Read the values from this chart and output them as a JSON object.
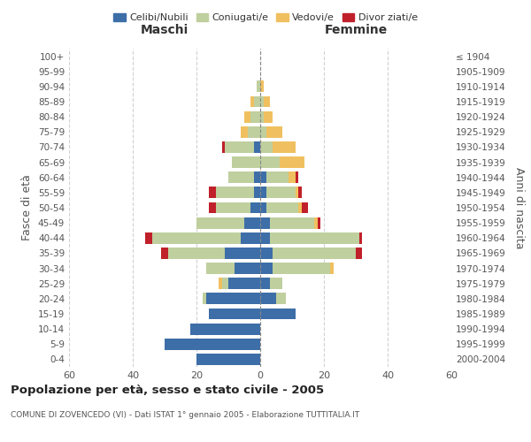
{
  "age_groups": [
    "0-4",
    "5-9",
    "10-14",
    "15-19",
    "20-24",
    "25-29",
    "30-34",
    "35-39",
    "40-44",
    "45-49",
    "50-54",
    "55-59",
    "60-64",
    "65-69",
    "70-74",
    "75-79",
    "80-84",
    "85-89",
    "90-94",
    "95-99",
    "100+"
  ],
  "birth_years": [
    "2000-2004",
    "1995-1999",
    "1990-1994",
    "1985-1989",
    "1980-1984",
    "1975-1979",
    "1970-1974",
    "1965-1969",
    "1960-1964",
    "1955-1959",
    "1950-1954",
    "1945-1949",
    "1940-1944",
    "1935-1939",
    "1930-1934",
    "1925-1929",
    "1920-1924",
    "1915-1919",
    "1910-1914",
    "1905-1909",
    "≤ 1904"
  ],
  "maschi": {
    "celibi": [
      20,
      30,
      22,
      16,
      17,
      10,
      8,
      11,
      6,
      5,
      3,
      2,
      2,
      0,
      2,
      0,
      0,
      0,
      0,
      0,
      0
    ],
    "coniugati": [
      0,
      0,
      0,
      0,
      1,
      2,
      9,
      18,
      28,
      15,
      11,
      12,
      8,
      9,
      9,
      4,
      3,
      2,
      1,
      0,
      0
    ],
    "vedovi": [
      0,
      0,
      0,
      0,
      0,
      1,
      0,
      0,
      0,
      0,
      0,
      0,
      0,
      0,
      0,
      2,
      2,
      1,
      0,
      0,
      0
    ],
    "divorziati": [
      0,
      0,
      0,
      0,
      0,
      0,
      0,
      2,
      2,
      0,
      2,
      2,
      0,
      0,
      1,
      0,
      0,
      0,
      0,
      0,
      0
    ]
  },
  "femmine": {
    "nubili": [
      0,
      0,
      0,
      11,
      5,
      3,
      4,
      4,
      3,
      3,
      2,
      2,
      2,
      0,
      0,
      0,
      0,
      0,
      0,
      0,
      0
    ],
    "coniugate": [
      0,
      0,
      0,
      0,
      3,
      4,
      18,
      26,
      28,
      14,
      10,
      9,
      7,
      6,
      4,
      2,
      1,
      1,
      0,
      0,
      0
    ],
    "vedove": [
      0,
      0,
      0,
      0,
      0,
      0,
      1,
      0,
      0,
      1,
      1,
      1,
      2,
      8,
      7,
      5,
      3,
      2,
      1,
      0,
      0
    ],
    "divorziate": [
      0,
      0,
      0,
      0,
      0,
      0,
      0,
      2,
      1,
      1,
      2,
      1,
      1,
      0,
      0,
      0,
      0,
      0,
      0,
      0,
      0
    ]
  },
  "colors": {
    "celibi": "#3d6ea8",
    "coniugati": "#bfcf9e",
    "vedovi": "#f0c060",
    "divorziati": "#c0202a"
  },
  "title": "Popolazione per età, sesso e stato civile - 2005",
  "subtitle": "COMUNE DI ZOVENCEDO (VI) - Dati ISTAT 1° gennaio 2005 - Elaborazione TUTTITALIA.IT",
  "xlabel_left": "Maschi",
  "xlabel_right": "Femmine",
  "ylabel_left": "Fasce di età",
  "ylabel_right": "Anni di nascita",
  "xlim": 60,
  "background": "#ffffff",
  "grid_color": "#cccccc"
}
